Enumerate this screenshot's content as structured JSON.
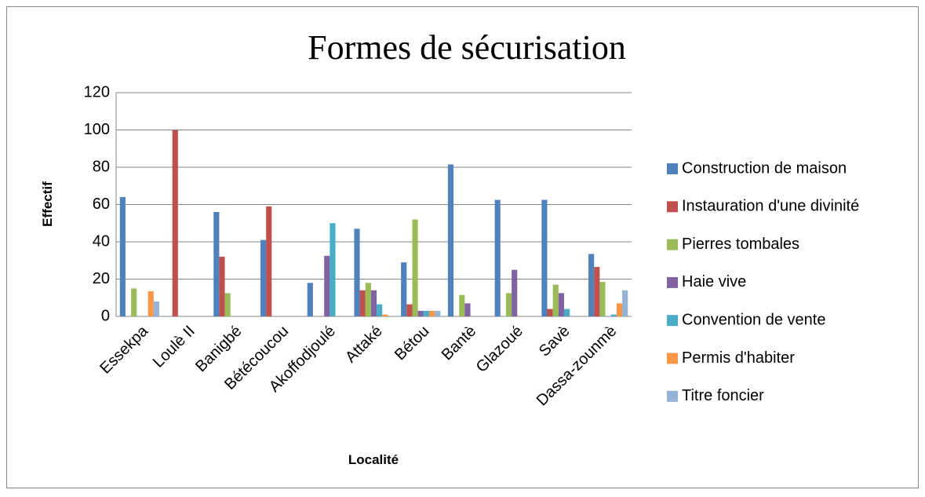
{
  "chart_data": {
    "type": "bar",
    "title": "Formes de sécurisation",
    "x_label": "Localité",
    "y_label": "Effectif",
    "categories": [
      "Essekpa",
      "Loulè II",
      "Banigbé",
      "Bétécoucou",
      "Akoffodjoulé",
      "Attaké",
      "Bétou",
      "Bantè",
      "Glazoué",
      "Savè",
      "Dassa-zounmè"
    ],
    "series": [
      {
        "name": "Construction de maison",
        "color": "#4f81bd",
        "values": [
          64,
          0,
          56,
          41,
          18,
          47,
          29,
          81.5,
          62.5,
          62.5,
          33.5
        ]
      },
      {
        "name": "Instauration d'une divinité",
        "color": "#c0504d",
        "values": [
          0,
          100,
          32,
          59,
          0,
          14,
          6.5,
          0,
          0,
          4,
          26.5
        ]
      },
      {
        "name": "Pierres tombales",
        "color": "#9bbb59",
        "values": [
          15,
          0,
          12.5,
          0,
          0,
          18,
          52,
          11.5,
          12.5,
          17,
          18.5
        ]
      },
      {
        "name": "Haie vive",
        "color": "#8064a2",
        "values": [
          0,
          0,
          0,
          0,
          32.5,
          14,
          3,
          7,
          25,
          12.5,
          0
        ]
      },
      {
        "name": "Convention de vente",
        "color": "#4bacc6",
        "values": [
          0,
          0,
          0,
          0,
          50,
          6.5,
          3,
          0,
          0,
          4,
          1
        ]
      },
      {
        "name": "Permis d'habiter",
        "color": "#f79646",
        "values": [
          13.5,
          0,
          0,
          0,
          0,
          1,
          3,
          0,
          0,
          0,
          7
        ]
      },
      {
        "name": "Titre foncier",
        "color": "#95b3d7",
        "values": [
          8,
          0,
          0,
          0,
          0,
          0,
          3,
          0,
          0,
          0,
          14
        ]
      }
    ],
    "ylim": [
      0,
      120
    ],
    "yticks": [
      0,
      20,
      40,
      60,
      80,
      100,
      120
    ],
    "grid": true,
    "legend": "right"
  }
}
